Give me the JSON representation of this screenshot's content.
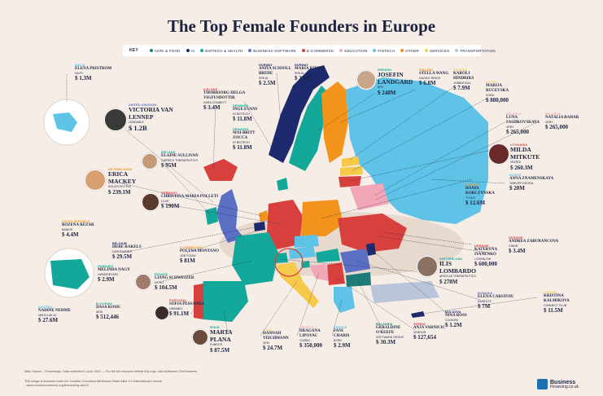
{
  "title": "The Top Female Founders in Europe",
  "key": {
    "label": "KEY",
    "items": [
      {
        "label": "AGRI & FOOD",
        "color": "#1f7a7a"
      },
      {
        "label": "AI",
        "color": "#1e2a6e"
      },
      {
        "label": "BIOTECH & HEALTH",
        "color": "#14a89a"
      },
      {
        "label": "BUSINESS SOFTWARE",
        "color": "#5b6fc4"
      },
      {
        "label": "E-COMMERCE",
        "color": "#d8403e"
      },
      {
        "label": "EDUCATION",
        "color": "#f2a7b8"
      },
      {
        "label": "FINTECH",
        "color": "#5ec3e6"
      },
      {
        "label": "OTHER",
        "color": "#f2931c"
      },
      {
        "label": "SERVICES",
        "color": "#f6c94a"
      },
      {
        "label": "TRANSPORTATION",
        "color": "#b9c5da"
      }
    ]
  },
  "founders": [
    {
      "country": "MALTA",
      "name": "ELENA PRISTROM",
      "company": "NILPY",
      "value": "$ 1.3M"
    },
    {
      "country": "UNITED KINGDOM",
      "name": "VICTORIA VAN LENNEP",
      "company": "LENDABLE",
      "value": "$ 1.2B"
    },
    {
      "country": "ICELAND",
      "name": "THORBJORG HELGA VIGFUSDOTTIR",
      "company": "KARA CONNECT",
      "value": "$ 3.4M"
    },
    {
      "country": "NORWAY",
      "name": "ANITA SCHJOLL BREDE",
      "company": "IRIS.AI",
      "value": "$ 2.5M"
    },
    {
      "country": "NORWAY",
      "name": "MARIA RITOLA",
      "company": "IRIS.AI",
      "value": "$ 2.5M"
    },
    {
      "country": "SWEDEN",
      "name": "JOSEFIN LANDGARD",
      "company": "KRY",
      "value": "$ 248M"
    },
    {
      "country": "FINLAND",
      "name": "STELLA WANG",
      "company": "DAZZLE RINGS",
      "value": "$ 6.8M"
    },
    {
      "country": "ESTONIA",
      "name": "KAROLI HINDRIKS",
      "company": "JOBBATICAL",
      "value": "$ 7.9M"
    },
    {
      "country": "LATVIA",
      "name": "MARIJA RUCEVSKA",
      "company": "KOBA",
      "value": "$ 880,000"
    },
    {
      "country": "DENMARK",
      "name": "INGE EVANS",
      "company": "IO BIOTECH",
      "value": "$ 11.8M"
    },
    {
      "country": "DENMARK",
      "name": "MAI-BRITT ZOCCA",
      "company": "IO BIOTECH",
      "value": "$ 11.8M"
    },
    {
      "country": "BELARUS",
      "name": "LUNA FASHKOVSKAYA",
      "company": "VEBY",
      "value": "$ 265,000"
    },
    {
      "country": "BELARUS",
      "name": "NATALIA BAHAR",
      "company": "VEBY",
      "value": "$ 265,000"
    },
    {
      "country": "LITHUANIA",
      "name": "MILDA MITKUTE",
      "company": "VINTED",
      "value": "$ 260.3M"
    },
    {
      "country": "IRELAND",
      "name": "ELAINE SULLIVAN",
      "company": "CARRICK THERAPEUTICS",
      "value": "$ 95M"
    },
    {
      "country": "NETHERLANDS",
      "name": "ERICA MACKEY",
      "company": "SOLA ELECTRIC",
      "value": "$ 239.1M"
    },
    {
      "country": "POLAND",
      "name": "HANIA KORCZYNSKA",
      "company": "TYLKO",
      "value": "$ 12.6M"
    },
    {
      "country": "RUSSIA",
      "name": "ANNA ZNAMENSKAYA",
      "company": "TINKOFF DIGITAL",
      "value": "$ 20M"
    },
    {
      "country": "GERMANY",
      "name": "CHRISTINA MARIA POLLETI",
      "company": "CLUE",
      "value": "$ 190M"
    },
    {
      "country": "CZECH REPUBLIC",
      "name": "BOZENA REZAB",
      "company": "BANKIS",
      "value": "$ 4.4M"
    },
    {
      "country": "BELGIUM",
      "name": "HEBE RAKELS",
      "company": "DASHDIGGER",
      "value": "$ 29.5M"
    },
    {
      "country": "LUXEMBOURG",
      "name": "POLYNA MONTANO",
      "company": "JOB TODAY",
      "value": "$ 81M"
    },
    {
      "country": "UKRAINE",
      "name": "ANDREA ZABURANCOVA",
      "company": "CINDR",
      "value": "$ 3.4M"
    },
    {
      "country": "HUNGARY",
      "name": "MELINDA NAGY",
      "company": "HANDIDESIGN",
      "value": "$ 2.9M"
    },
    {
      "country": "FRANCE",
      "name": "LIANG SCHWEIZER",
      "company": "NITRO",
      "value": "$ 104.5M"
    },
    {
      "country": "SWITZERLAND",
      "name": "ILIS LOMBARDO",
      "company": "ARVELLE THERAPEUTICS",
      "value": "$ 278M"
    },
    {
      "country": "UKRAINE",
      "name": "KATERYNA IVANENKO",
      "company": "LOVEBLOW",
      "value": "$ 600,000"
    },
    {
      "country": "SLOVENIA",
      "name": "DASA KOSIC",
      "company": "MOS",
      "value": "$ 512,446"
    },
    {
      "country": "PORTUGAL",
      "name": "SOFIA PESSANHA",
      "company": "UNBABEL",
      "value": "$ 91.1M"
    },
    {
      "country": "ROMANIA",
      "name": "ELENA CARSTOIU",
      "company": "KASEUTS",
      "value": "$ 7M"
    },
    {
      "country": "AUSTRIA",
      "name": "NADINE NEHME",
      "company": "MEDCLUE AI",
      "value": "$ 27.6M"
    },
    {
      "country": "SPAIN",
      "name": "MARTA PLANA",
      "company": "FUNDITZ",
      "value": "$ 87.5M"
    },
    {
      "country": "ITALY",
      "name": "HANNAH TEICHMANN",
      "company": "XEM",
      "value": "$ 24.7M"
    },
    {
      "country": "CROATIA",
      "name": "DRAGANA LIPOVAC",
      "company": "CLEBIO",
      "value": "$ 350,000"
    },
    {
      "country": "GREECE",
      "name": "FANI CHARIS",
      "company": "BYRD",
      "value": "$ 2.9M"
    },
    {
      "country": "BULGARIA",
      "name": "GERALDINE O'KEEFE",
      "company": "SOFTWARE GROUP",
      "value": "$ 30.3M"
    },
    {
      "country": "SERBIA",
      "name": "ANJA VARNICIC",
      "company": "VENDOR",
      "value": "$ 127,654"
    },
    {
      "country": "MOLDOVA",
      "name": "NINA ROSS",
      "company": "COOKEM",
      "value": "$ 1.2M"
    },
    {
      "country": "CYPRUS",
      "name": "KRISTINA KALMIKOVA",
      "company": "CONNECT CLUB",
      "value": "$ 11.5M"
    }
  ],
  "footer": {
    "source": "Main Source - Crunchbase. Data collected in June 2021 — For the full research behind this map, visit bf/Women-TheGleaners.",
    "license": "This image is licensed under the Creative Commons Attribution-Share Alike 4.0 International License - www.creativecommons.org/licenses/by-sa/4.0"
  },
  "brand": {
    "line1": "Business",
    "line2": "Financing.co.uk"
  }
}
